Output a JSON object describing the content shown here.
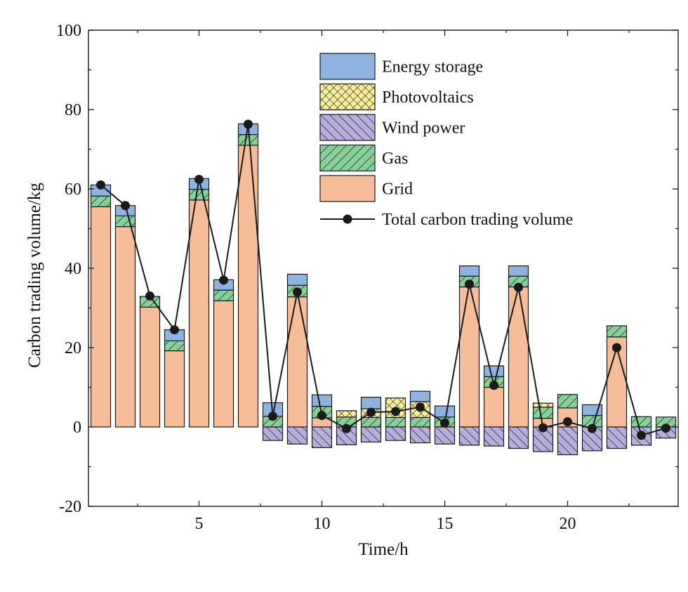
{
  "chart_data": {
    "type": "bar",
    "stacked": true,
    "title": "",
    "xlabel": "Time/h",
    "ylabel": "Carbon trading volume/kg",
    "ylim": [
      -20,
      100
    ],
    "xlim": [
      0.5,
      24.5
    ],
    "yticks": [
      -20,
      0,
      20,
      40,
      60,
      80,
      100
    ],
    "ytick_labels": [
      "-20",
      "0",
      "20",
      "40",
      "60",
      "80",
      "100"
    ],
    "xticks": [
      5,
      10,
      15,
      20
    ],
    "xtick_labels": [
      "5",
      "10",
      "15",
      "20"
    ],
    "legend_position": "top-right",
    "grid": false,
    "categories": [
      1,
      2,
      3,
      4,
      5,
      6,
      7,
      8,
      9,
      10,
      11,
      12,
      13,
      14,
      15,
      16,
      17,
      18,
      19,
      20,
      21,
      22,
      23,
      24
    ],
    "series": [
      {
        "name": "Grid",
        "color": "#f7bd98",
        "pattern": "none",
        "values": [
          55.5,
          50.5,
          30.2,
          19.2,
          57.2,
          31.8,
          71.0,
          0,
          32.8,
          2.3,
          0,
          0,
          0,
          0,
          0,
          35.3,
          10.0,
          35.3,
          2.2,
          4.8,
          0,
          22.7,
          0,
          0
        ]
      },
      {
        "name": "Gas",
        "color": "#86d19a",
        "pattern": "diagonal",
        "values": [
          2.7,
          2.7,
          2.7,
          2.5,
          2.7,
          2.7,
          2.7,
          2.7,
          2.9,
          2.9,
          2.5,
          2.4,
          2.4,
          2.4,
          2.5,
          2.7,
          2.7,
          2.7,
          2.8,
          3.4,
          2.9,
          2.8,
          2.6,
          2.5
        ]
      },
      {
        "name": "Photovoltaics",
        "color": "#f7ee9b",
        "pattern": "crosshatch",
        "values": [
          0,
          0,
          0,
          0,
          0,
          0,
          0,
          0,
          0,
          0,
          1.6,
          2.2,
          4.9,
          4.0,
          0,
          0,
          0,
          0,
          1.0,
          0,
          0,
          0,
          0,
          0
        ]
      },
      {
        "name": "Energy storage",
        "color": "#8fb3e0",
        "pattern": "none",
        "values": [
          2.8,
          2.6,
          0,
          2.8,
          2.7,
          2.6,
          2.7,
          3.4,
          2.8,
          2.9,
          0,
          2.9,
          0,
          2.6,
          2.8,
          2.6,
          2.7,
          2.6,
          0,
          0,
          2.7,
          0,
          0,
          0
        ]
      },
      {
        "name": "Wind power",
        "color": "#b7aedb",
        "pattern": "backdiagonal",
        "values": [
          0,
          0,
          0,
          0,
          0,
          0,
          0,
          -3.4,
          -4.3,
          -5.2,
          -4.5,
          -3.8,
          -3.4,
          -4.0,
          -4.3,
          -4.6,
          -4.8,
          -5.4,
          -6.2,
          -7.0,
          -6.0,
          -5.4,
          -4.6,
          -2.8
        ]
      }
    ],
    "line_series": {
      "name": "Total carbon trading volume",
      "color": "#1a1a1a",
      "values": [
        61.0,
        55.8,
        33.0,
        24.5,
        62.4,
        37.0,
        76.3,
        2.7,
        34.0,
        2.9,
        -0.4,
        3.7,
        3.9,
        5.0,
        1.0,
        36.0,
        10.5,
        35.2,
        -0.2,
        1.3,
        -0.4,
        20.0,
        -2.1,
        -0.3
      ]
    },
    "legend_order": [
      "Energy storage",
      "Photovoltaics",
      "Wind power",
      "Gas",
      "Grid",
      "Total carbon trading volume"
    ]
  }
}
